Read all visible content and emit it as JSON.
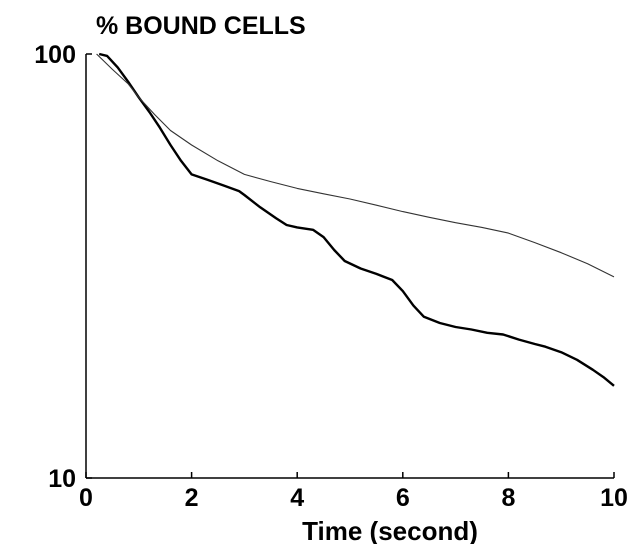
{
  "chart_data": {
    "type": "line",
    "title": "% BOUND CELLS",
    "xlabel": "Time (second)",
    "ylabel": "",
    "xlim": [
      0,
      10
    ],
    "ylim": [
      10,
      100
    ],
    "y_scale": "log",
    "grid": false,
    "legend": "none",
    "x_ticks": [
      0,
      2,
      4,
      6,
      8,
      10
    ],
    "y_ticks": [
      10,
      100
    ],
    "series": [
      {
        "line_style": "thick",
        "color": "#000000",
        "x": [
          0.25,
          0.4,
          0.6,
          0.8,
          1.0,
          1.2,
          1.4,
          1.6,
          1.8,
          2.0,
          2.3,
          2.6,
          2.9,
          3.0,
          3.3,
          3.6,
          3.8,
          4.0,
          4.3,
          4.5,
          4.7,
          4.9,
          5.2,
          5.5,
          5.8,
          6.0,
          6.2,
          6.4,
          6.7,
          7.0,
          7.3,
          7.6,
          7.9,
          8.2,
          8.5,
          8.7,
          9.0,
          9.3,
          9.6,
          9.8,
          10.0
        ],
        "y": [
          100,
          99,
          93,
          86,
          79,
          73,
          67,
          61,
          56,
          52,
          50.5,
          49,
          47.5,
          46.5,
          43.5,
          41,
          39.5,
          39,
          38.5,
          37,
          34.5,
          32.5,
          31.2,
          30.3,
          29.3,
          27.6,
          25.5,
          24.0,
          23.2,
          22.7,
          22.4,
          22.0,
          21.8,
          21.2,
          20.7,
          20.4,
          19.8,
          19.0,
          18.0,
          17.3,
          16.5
        ]
      },
      {
        "line_style": "thin",
        "color": "#333333",
        "x": [
          0.2,
          0.5,
          0.8,
          1.0,
          1.3,
          1.6,
          2.0,
          2.5,
          3.0,
          3.5,
          4.0,
          4.5,
          5.0,
          5.5,
          6.0,
          6.5,
          7.0,
          7.5,
          8.0,
          8.5,
          9.0,
          9.5,
          10.0
        ],
        "y": [
          100,
          92,
          85,
          79,
          72,
          66,
          61,
          56,
          52,
          50,
          48.2,
          46.8,
          45.5,
          44.0,
          42.5,
          41.2,
          40.0,
          39.0,
          37.8,
          35.9,
          34.0,
          32.0,
          29.8
        ]
      }
    ]
  }
}
